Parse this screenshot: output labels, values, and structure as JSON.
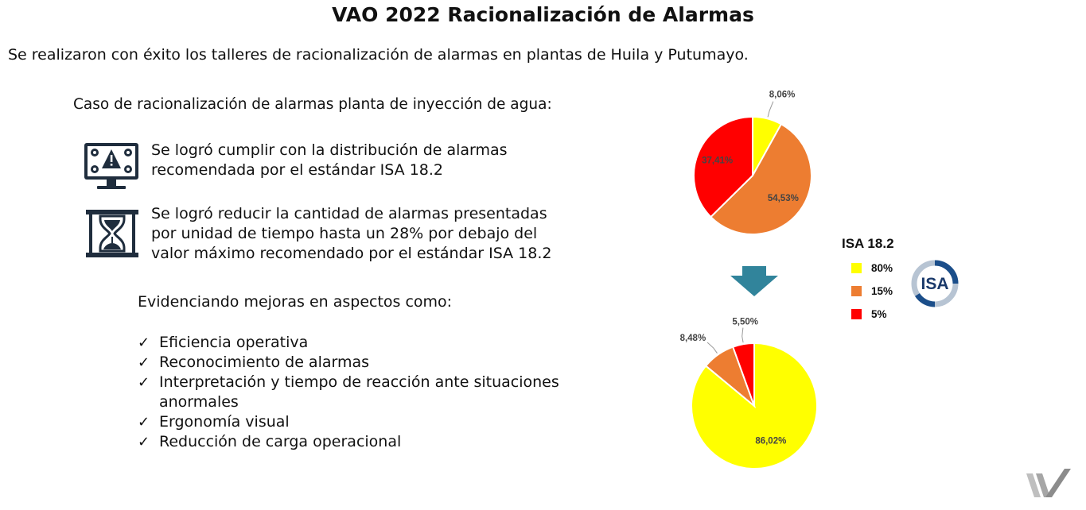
{
  "slide": {
    "title": "VAO 2022  Racionalización de Alarmas",
    "intro": "Se realizaron con éxito los talleres de racionalización de alarmas en plantas de Huila y Putumayo.",
    "case_heading": "Caso de racionalización de alarmas planta de inyección de agua:",
    "achievements": [
      {
        "icon": "alarm-monitor-icon",
        "text": "Se logró cumplir con la distribución de alarmas recomendada por el estándar ISA 18.2"
      },
      {
        "icon": "hourglass-icon",
        "text": "Se logró reducir la cantidad de alarmas presentadas por unidad de tiempo hasta un 28% por debajo del valor máximo recomendado por el estándar ISA 18.2"
      }
    ],
    "improvements_heading": "Evidenciando mejoras en aspectos como:",
    "check_glyph": "✓",
    "improvements": [
      "Eficiencia operativa",
      "Reconocimiento de alarmas",
      "Interpretación y tiempo de reacción ante situaciones anormales",
      "Ergonomía visual",
      "Reducción de carga operacional"
    ]
  },
  "legend": {
    "title": "ISA 18.2",
    "items": [
      {
        "label": "80%",
        "color": "#FFFF00"
      },
      {
        "label": "15%",
        "color": "#ED7D31"
      },
      {
        "label": "5%",
        "color": "#FF0000"
      }
    ]
  },
  "logos": {
    "isa": "ISA",
    "corner": "brand-logo"
  },
  "chart_data": [
    {
      "type": "pie",
      "title": "",
      "slices": [
        {
          "label": "8,06%",
          "value": 8.06,
          "color": "#FFFF00"
        },
        {
          "label": "54,53%",
          "value": 54.53,
          "color": "#ED7D31"
        },
        {
          "label": "37,41%",
          "value": 37.41,
          "color": "#FF0000"
        }
      ]
    },
    {
      "type": "pie",
      "title": "",
      "slices": [
        {
          "label": "86,02%",
          "value": 86.02,
          "color": "#FFFF00"
        },
        {
          "label": "8,48%",
          "value": 8.48,
          "color": "#ED7D31"
        },
        {
          "label": "5,50%",
          "value": 5.5,
          "color": "#FF0000"
        }
      ]
    }
  ]
}
